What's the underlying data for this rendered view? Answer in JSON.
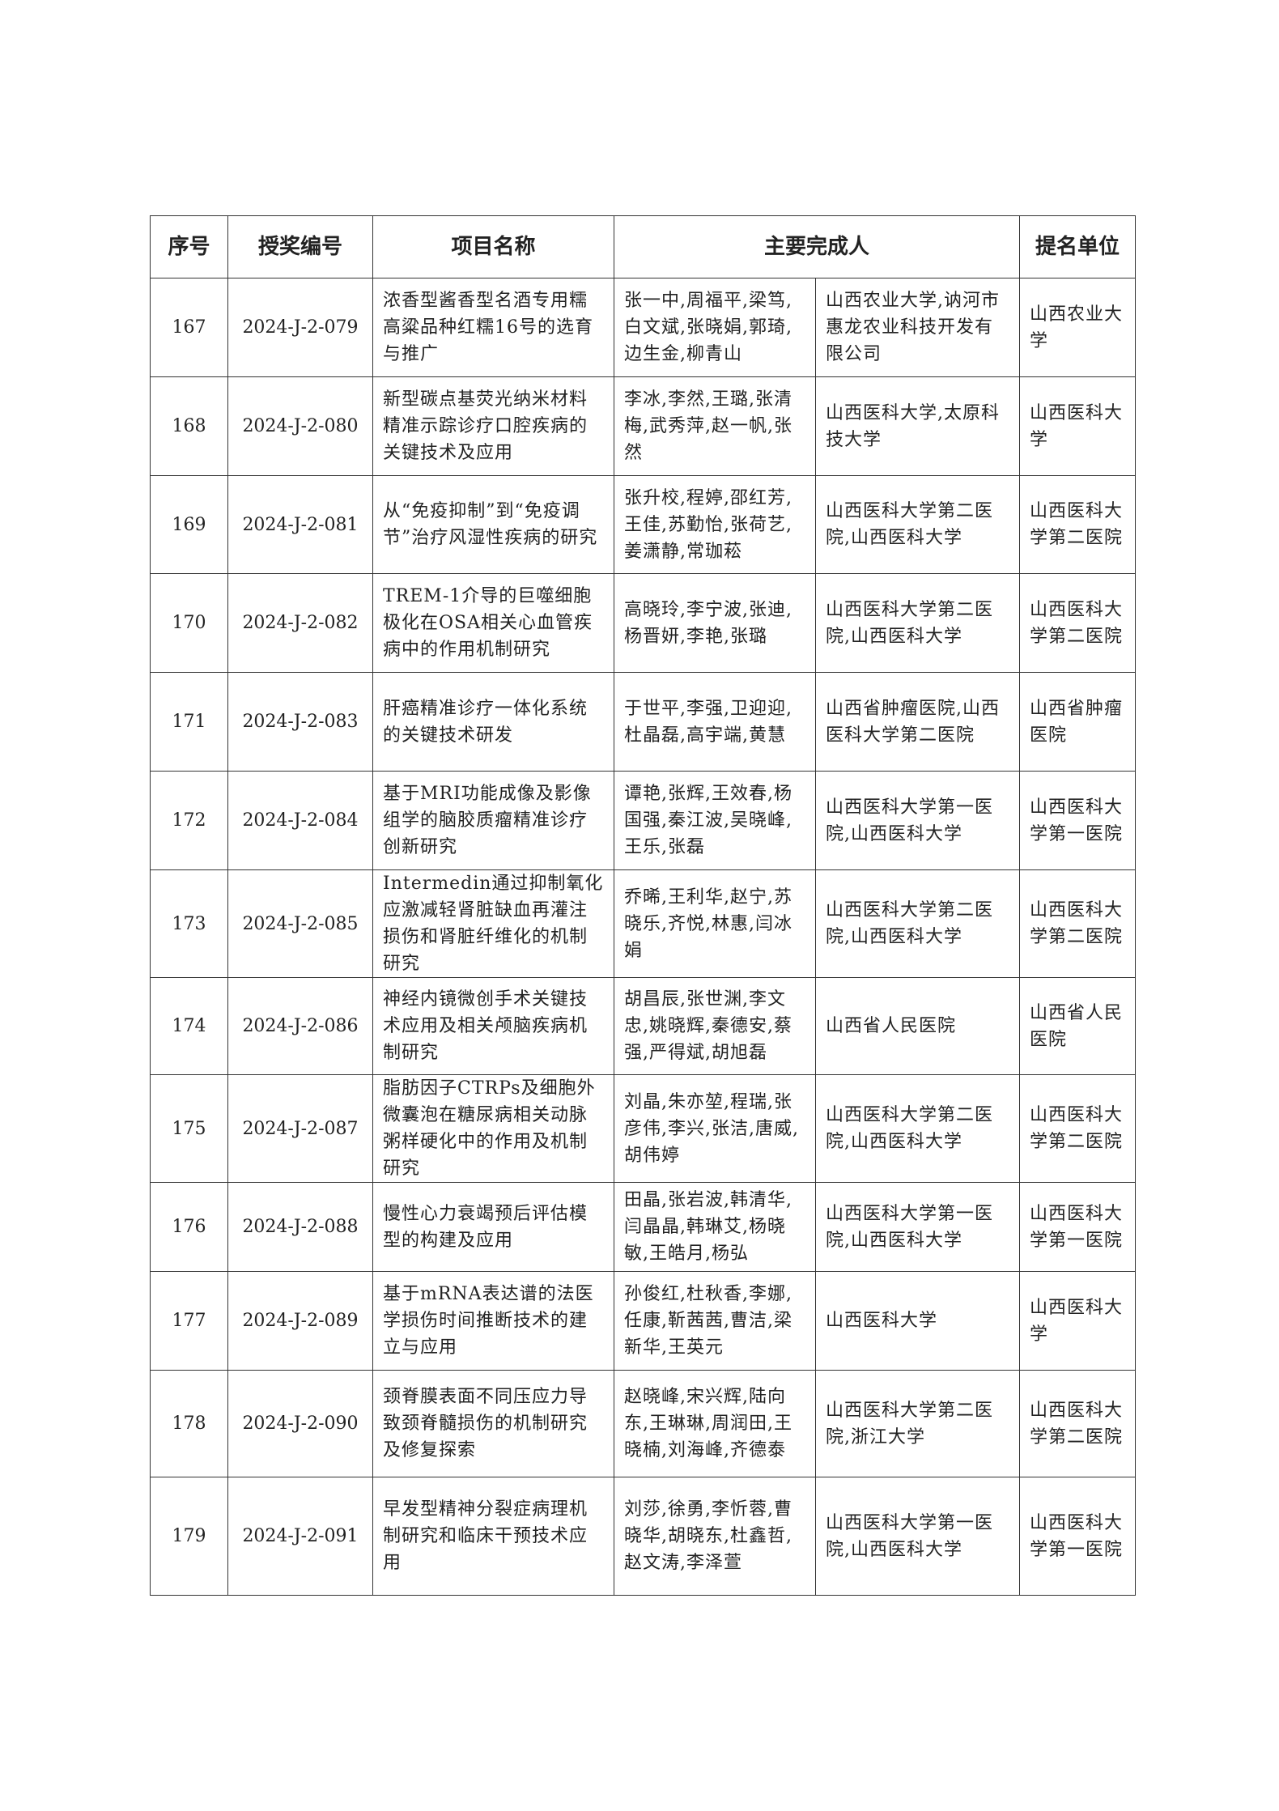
{
  "headers": [
    "序号",
    "授奖编号",
    "项目名称",
    "主要完成人",
    "提名单位"
  ],
  "rows": [
    {
      "no": "167",
      "code": "2024-J-2-079",
      "name": "浓香型酱香型名酒专用糯高粱品种红糯16号的选育与推广",
      "people": "张一中,周福平,梁笃,白文斌,张晓娟,郭琦,边生金,柳青山",
      "units": "山西农业大学,讷河市惠龙农业科技开发有限公司",
      "nominator": "山西农业大学"
    },
    {
      "no": "168",
      "code": "2024-J-2-080",
      "name": "新型碳点基荧光纳米材料精准示踪诊疗口腔疾病的关键技术及应用",
      "people": "李冰,李然,王璐,张清梅,武秀萍,赵一帆,张然",
      "units": "山西医科大学,太原科技大学",
      "nominator": "山西医科大学"
    },
    {
      "no": "169",
      "code": "2024-J-2-081",
      "name": "从“免疫抑制”到“免疫调节”治疗风湿性疾病的研究",
      "people": "张升校,程婷,邵红芳,王佳,苏勤怡,张荷艺,姜潇静,常珈菘",
      "units": "山西医科大学第二医院,山西医科大学",
      "nominator": "山西医科大学第二医院"
    },
    {
      "no": "170",
      "code": "2024-J-2-082",
      "name": "TREM-1介导的巨噬细胞极化在OSA相关心血管疾病中的作用机制研究",
      "people": "高晓玲,李宁波,张迪,杨晋妍,李艳,张璐",
      "units": "山西医科大学第二医院,山西医科大学",
      "nominator": "山西医科大学第二医院"
    },
    {
      "no": "171",
      "code": "2024-J-2-083",
      "name": "肝癌精准诊疗一体化系统的关键技术研发",
      "people": "于世平,李强,卫迎迎,杜晶磊,高宇端,黄慧",
      "units": "山西省肿瘤医院,山西医科大学第二医院",
      "nominator": "山西省肿瘤医院"
    },
    {
      "no": "172",
      "code": "2024-J-2-084",
      "name": "基于MRI功能成像及影像组学的脑胶质瘤精准诊疗创新研究",
      "people": "谭艳,张辉,王效春,杨国强,秦江波,吴晓峰,王乐,张磊",
      "units": "山西医科大学第一医院,山西医科大学",
      "nominator": "山西医科大学第一医院"
    },
    {
      "no": "173",
      "code": "2024-J-2-085",
      "name": "Intermedin通过抑制氧化应激减轻肾脏缺血再灌注损伤和肾脏纤维化的机制研究",
      "people": "乔晞,王利华,赵宁,苏晓乐,齐悦,林惠,闫冰娟",
      "units": "山西医科大学第二医院,山西医科大学",
      "nominator": "山西医科大学第二医院"
    },
    {
      "no": "174",
      "code": "2024-J-2-086",
      "name": "神经内镜微创手术关键技术应用及相关颅脑疾病机制研究",
      "people": "胡昌辰,张世渊,李文忠,姚晓辉,秦德安,蔡强,严得斌,胡旭磊",
      "units": "山西省人民医院",
      "nominator": "山西省人民医院"
    },
    {
      "no": "175",
      "code": "2024-J-2-087",
      "name": "脂肪因子CTRPs及细胞外微囊泡在糖尿病相关动脉粥样硬化中的作用及机制研究",
      "people": "刘晶,朱亦堃,程瑞,张彦伟,李兴,张洁,唐威,胡伟婷",
      "units": "山西医科大学第二医院,山西医科大学",
      "nominator": "山西医科大学第二医院"
    },
    {
      "no": "176",
      "code": "2024-J-2-088",
      "name": "慢性心力衰竭预后评估模型的构建及应用",
      "people": "田晶,张岩波,韩清华,闫晶晶,韩琳艾,杨晓敏,王皓月,杨弘",
      "units": "山西医科大学第一医院,山西医科大学",
      "nominator": "山西医科大学第一医院"
    },
    {
      "no": "177",
      "code": "2024-J-2-089",
      "name": "基于mRNA表达谱的法医学损伤时间推断技术的建立与应用",
      "people": "孙俊红,杜秋香,李娜,任康,靳茜茜,曹洁,梁新华,王英元",
      "units": "山西医科大学",
      "nominator": "山西医科大学"
    },
    {
      "no": "178",
      "code": "2024-J-2-090",
      "name": "颈脊膜表面不同压应力导致颈脊髓损伤的机制研究及修复探索",
      "people": "赵晓峰,宋兴辉,陆向东,王琳琳,周润田,王晓楠,刘海峰,齐德泰",
      "units": "山西医科大学第二医院,浙江大学",
      "nominator": "山西医科大学第二医院"
    },
    {
      "no": "179",
      "code": "2024-J-2-091",
      "name": "早发型精神分裂症病理机制研究和临床干预技术应用",
      "people": "刘莎,徐勇,李忻蓉,曹晓华,胡晓东,杜鑫哲,赵文涛,李泽萱",
      "units": "山西医科大学第一医院,山西医科大学",
      "nominator": "山西医科大学第一医院"
    }
  ]
}
